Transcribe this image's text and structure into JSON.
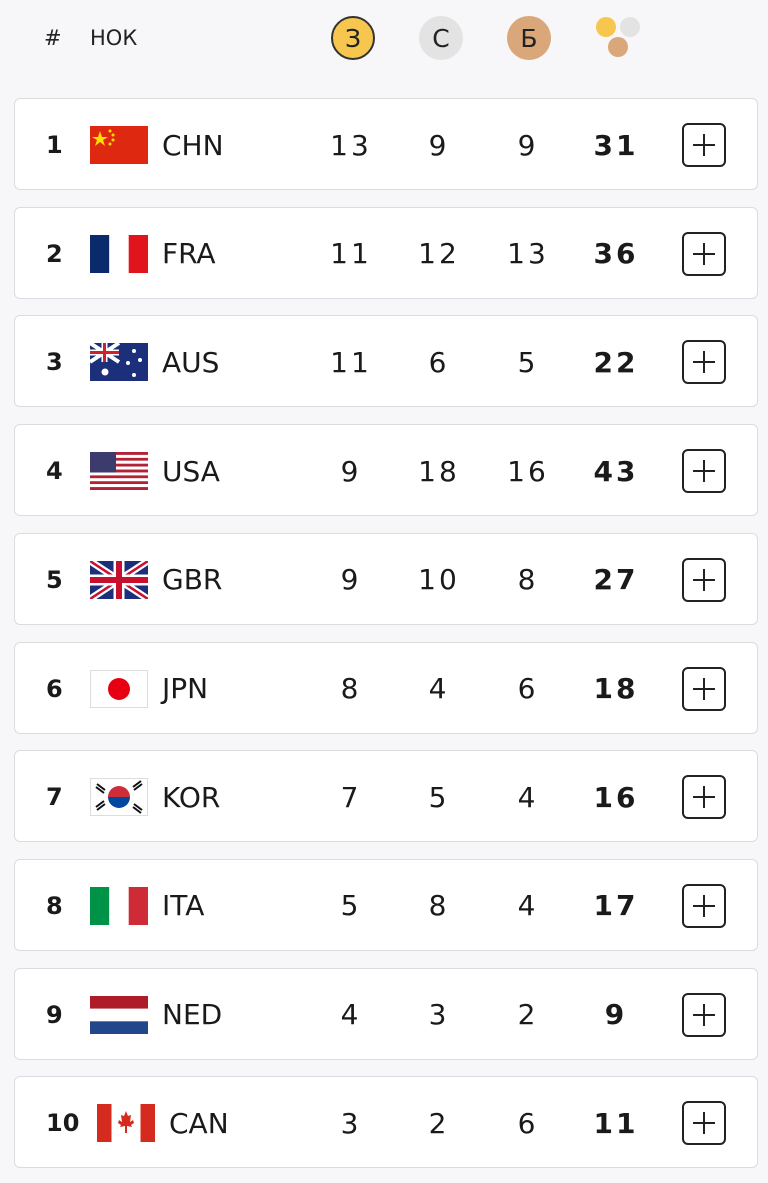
{
  "header": {
    "rank": "#",
    "noc": "НОК",
    "gold": "З",
    "silver": "С",
    "bronze": "Б"
  },
  "rows": [
    {
      "rank": 1,
      "noc": "CHN",
      "gold": 13,
      "silver": 9,
      "bronze": 9,
      "total": 31
    },
    {
      "rank": 2,
      "noc": "FRA",
      "gold": 11,
      "silver": 12,
      "bronze": 13,
      "total": 36
    },
    {
      "rank": 3,
      "noc": "AUS",
      "gold": 11,
      "silver": 6,
      "bronze": 5,
      "total": 22
    },
    {
      "rank": 4,
      "noc": "USA",
      "gold": 9,
      "silver": 18,
      "bronze": 16,
      "total": 43
    },
    {
      "rank": 5,
      "noc": "GBR",
      "gold": 9,
      "silver": 10,
      "bronze": 8,
      "total": 27
    },
    {
      "rank": 6,
      "noc": "JPN",
      "gold": 8,
      "silver": 4,
      "bronze": 6,
      "total": 18
    },
    {
      "rank": 7,
      "noc": "KOR",
      "gold": 7,
      "silver": 5,
      "bronze": 4,
      "total": 16
    },
    {
      "rank": 8,
      "noc": "ITA",
      "gold": 5,
      "silver": 8,
      "bronze": 4,
      "total": 17
    },
    {
      "rank": 9,
      "noc": "NED",
      "gold": 4,
      "silver": 3,
      "bronze": 2,
      "total": 9
    },
    {
      "rank": 10,
      "noc": "CAN",
      "gold": 3,
      "silver": 2,
      "bronze": 6,
      "total": 11
    }
  ]
}
